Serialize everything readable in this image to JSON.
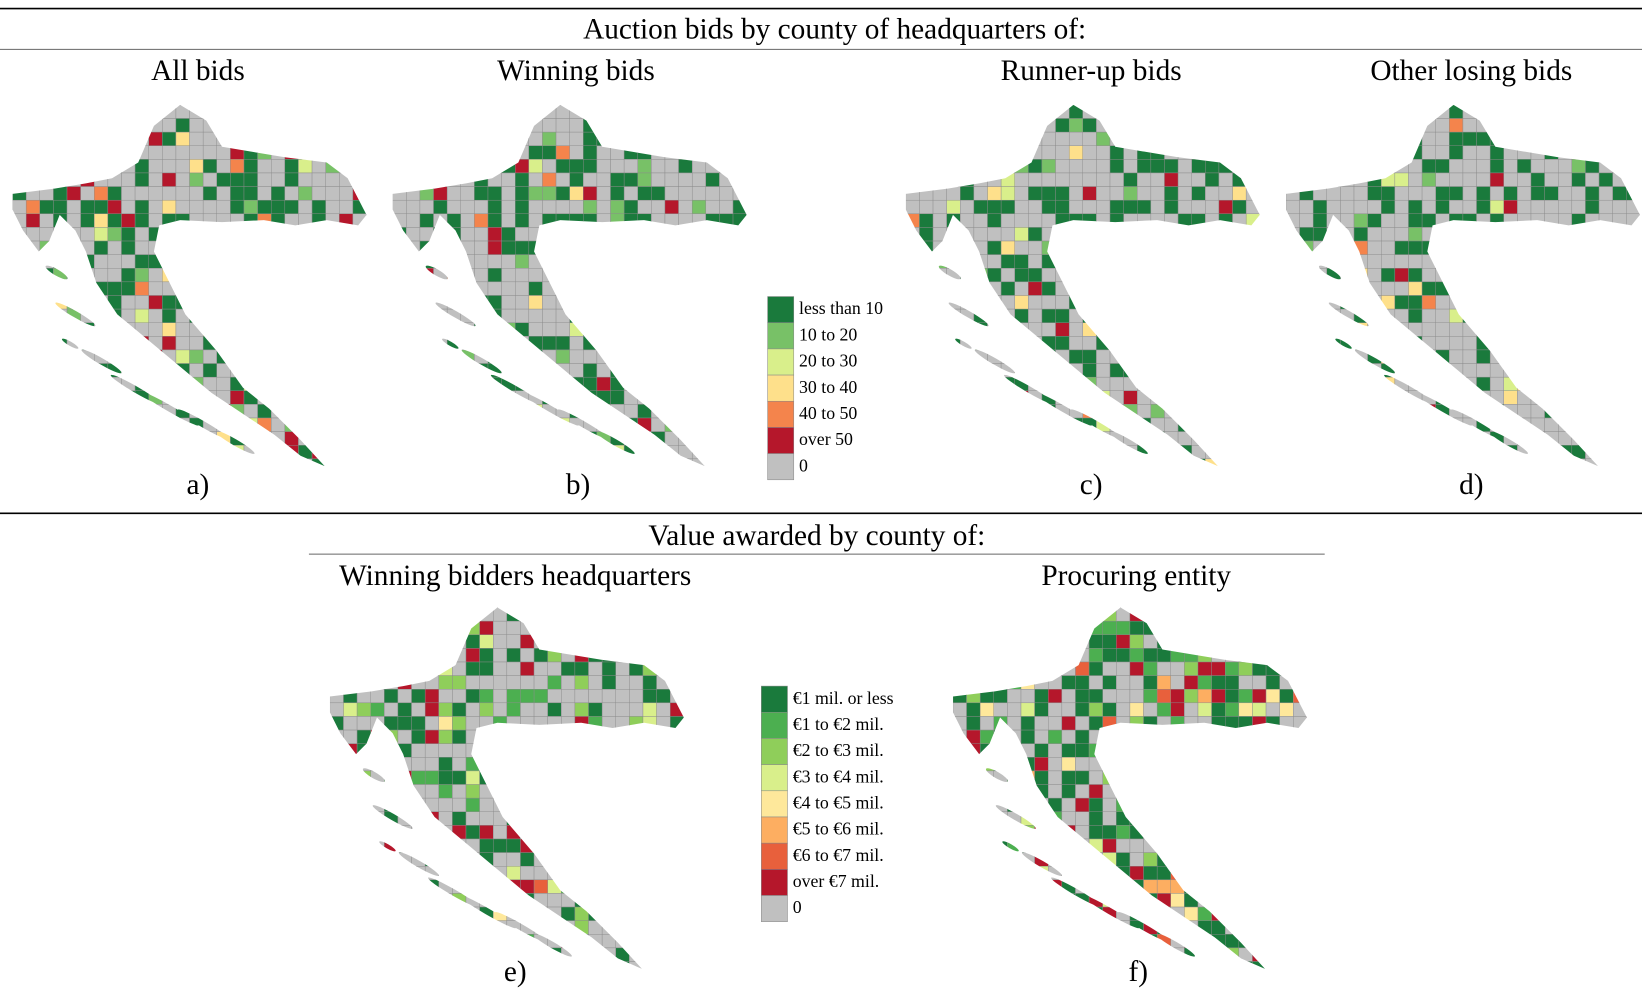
{
  "top": {
    "title": "Auction bids by county of headquarters of:",
    "panels": [
      {
        "title": "All bids",
        "label": "a)"
      },
      {
        "title": "Winning bids",
        "label": "b)"
      },
      {
        "title": "Runner-up bids",
        "label": "c)"
      },
      {
        "title": "Other losing bids",
        "label": "d)"
      }
    ],
    "legend": [
      {
        "label": "less than 10",
        "color": "#1a7a3c"
      },
      {
        "label": "10 to 20",
        "color": "#78c167"
      },
      {
        "label": "20 to 30",
        "color": "#d9ef8b"
      },
      {
        "label": "30 to 40",
        "color": "#fee08b"
      },
      {
        "label": "40 to 50",
        "color": "#f4844c"
      },
      {
        "label": "over 50",
        "color": "#b5172b"
      },
      {
        "label": "0",
        "color": "#c0c0c0"
      }
    ]
  },
  "bottom": {
    "title": "Value awarded by county of:",
    "panels": [
      {
        "title": "Winning bidders headquarters",
        "label": "e)"
      },
      {
        "title": "Procuring entity",
        "label": "f)"
      }
    ],
    "legend": [
      {
        "label": "€1 mil. or less",
        "color": "#1a7a3c"
      },
      {
        "label": "€1 to €2 mil.",
        "color": "#4caf50"
      },
      {
        "label": "€2 to €3 mil.",
        "color": "#8fce5a"
      },
      {
        "label": "€3 to €4 mil.",
        "color": "#d9ef8b"
      },
      {
        "label": "€4 to €5 mil.",
        "color": "#fee89b"
      },
      {
        "label": "€5 to €6 mil.",
        "color": "#fdae61"
      },
      {
        "label": "€6 to €7 mil.",
        "color": "#e8603c"
      },
      {
        "label": "over €7 mil.",
        "color": "#b5172b"
      },
      {
        "label": "0",
        "color": "#c0c0c0"
      }
    ]
  }
}
